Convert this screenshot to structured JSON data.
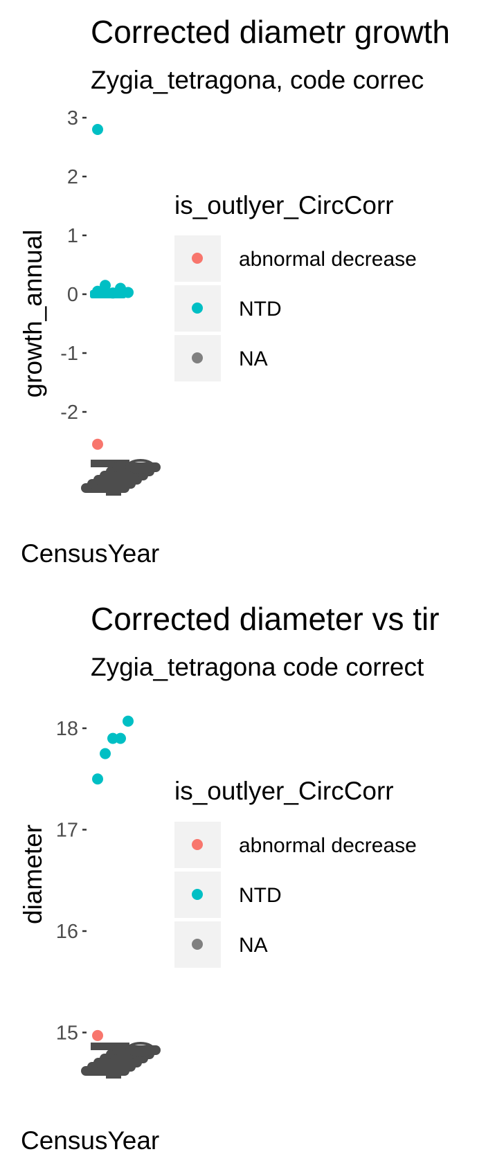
{
  "chart_data": [
    {
      "type": "scatter",
      "title": "Corrected diametr growth",
      "subtitle": "Zygia_tetragona, code correc",
      "xlabel": "CensusYear",
      "ylabel": "growth_annual",
      "yticks": [
        "3",
        "2",
        "1",
        "0",
        "-1",
        "-2"
      ],
      "ytick_values": [
        3,
        2,
        1,
        0,
        -1,
        -2
      ],
      "ylim": [
        -2.7,
        3.2
      ],
      "legend": {
        "title": "is_outlyer_CircCorr",
        "placement": "right",
        "entries": [
          {
            "label": "abnormal decrease",
            "color": "#F8766D"
          },
          {
            "label": "NTD",
            "color": "#00BFC4"
          },
          {
            "label": "NA",
            "color": "#808080"
          }
        ]
      },
      "series": [
        {
          "name": "NTD",
          "color": "#00BFC4",
          "points": [
            [
              1,
              2.8
            ],
            [
              1,
              0.05
            ],
            [
              2,
              0.15
            ],
            [
              3,
              0.02
            ],
            [
              4,
              0.1
            ],
            [
              5,
              0.03
            ]
          ]
        },
        {
          "name": "abnormal decrease",
          "color": "#F8766D",
          "points": [
            [
              1,
              -2.55
            ]
          ]
        }
      ],
      "x_tick_overplot": "overlapping tick labels"
    },
    {
      "type": "scatter",
      "title": "Corrected diameter vs tir",
      "subtitle": "Zygia_tetragona code correct",
      "xlabel": "CensusYear",
      "ylabel": "diameter",
      "yticks": [
        "18",
        "17",
        "16",
        "15"
      ],
      "ytick_values": [
        18,
        17,
        16,
        15
      ],
      "ylim": [
        14.8,
        18.2
      ],
      "legend": {
        "title": "is_outlyer_CircCorr",
        "placement": "right",
        "entries": [
          {
            "label": "abnormal decrease",
            "color": "#F8766D"
          },
          {
            "label": "NTD",
            "color": "#00BFC4"
          },
          {
            "label": "NA",
            "color": "#808080"
          }
        ]
      },
      "series": [
        {
          "name": "NTD",
          "color": "#00BFC4",
          "points": [
            [
              1,
              17.5
            ],
            [
              2,
              17.75
            ],
            [
              3,
              17.9
            ],
            [
              4,
              17.9
            ],
            [
              5,
              18.07
            ]
          ]
        },
        {
          "name": "abnormal decrease",
          "color": "#F8766D",
          "points": [
            [
              1,
              14.97
            ]
          ]
        }
      ],
      "x_tick_overplot": "overlapping tick labels"
    }
  ]
}
